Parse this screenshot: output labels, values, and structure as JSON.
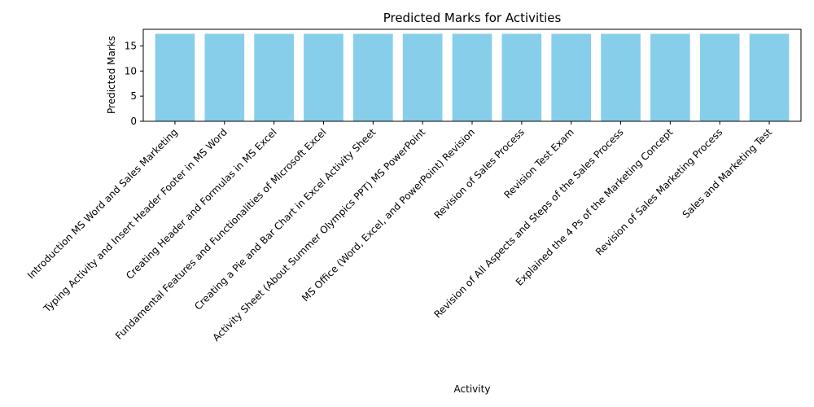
{
  "chart_data": {
    "type": "bar",
    "title": "Predicted Marks for Activities",
    "xlabel": "Activity",
    "ylabel": "Predicted Marks",
    "categories": [
      "Introduction MS Word and Sales Marketing",
      "Typing Activity and Insert Header Footer in MS Word",
      "Creating Header and Formulas in MS Excel",
      "Fundamental Features and Functionalities of Microsoft Excel",
      "Creating a Pie and Bar Chart in Excel Activity Sheet",
      "Activity Sheet (About Summer Olympics PPT) MS PowerPoint",
      "MS Office (Word, Excel, and PowerPoint) Revision",
      "Revision of Sales Process",
      "Revision Test Exam",
      "Revision of All Aspects and Steps of the Sales Process",
      "Explained the 4 Ps of the Marketing Concept",
      "Revision of Sales Marketing Process",
      "Sales and Marketing Test"
    ],
    "values": [
      17.4,
      17.4,
      17.4,
      17.4,
      17.4,
      17.4,
      17.4,
      17.4,
      17.4,
      17.4,
      17.4,
      17.4,
      17.4
    ],
    "ylim": [
      0,
      18.3
    ],
    "yticks": [
      0,
      5,
      10,
      15
    ],
    "grid": false,
    "bar_color": "#87ceeb"
  }
}
